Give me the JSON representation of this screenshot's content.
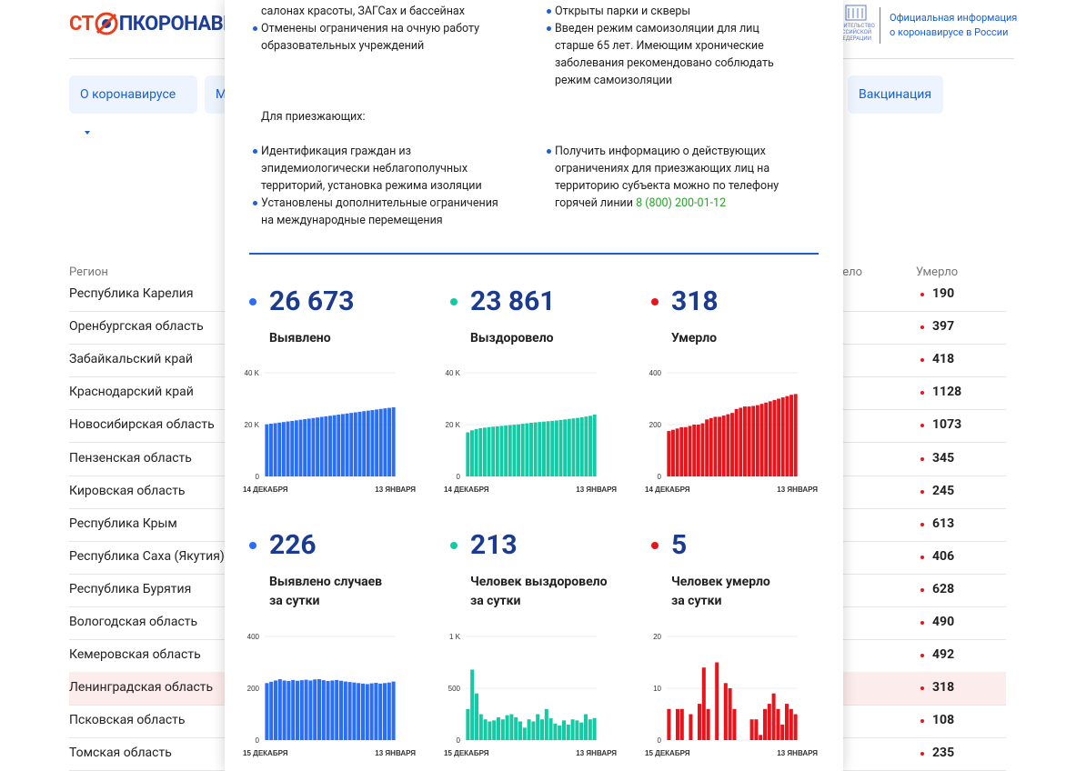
{
  "header": {
    "logo_left": "СТ",
    "logo_right": "ПКОРОНАВИРУС",
    "gov_emblem_text": [
      "ПРАВИТЕЛЬСТВО",
      "РОССИЙСКОЙ",
      "ФЕДЕРАЦИИ"
    ],
    "official_info": [
      "Официальная информация",
      "о коронавирусе в России"
    ]
  },
  "nav": [
    "О коронавирусе",
    "Меры",
    "Вакцинация"
  ],
  "table": {
    "headers": [
      "Регион",
      "Выздоровело",
      "Умерло"
    ],
    "rows": [
      [
        "Республика Карелия",
        "190"
      ],
      [
        "Оренбургская область",
        "397"
      ],
      [
        "Забайкальский край",
        "418"
      ],
      [
        "Краснодарский край",
        "1128"
      ],
      [
        "Новосибирская область",
        "1073"
      ],
      [
        "Пензенская область",
        "345"
      ],
      [
        "Кировская область",
        "245"
      ],
      [
        "Республика Крым",
        "613"
      ],
      [
        "Республика Саха (Якутия)",
        "406"
      ],
      [
        "Республика Бурятия",
        "628"
      ],
      [
        "Вологодская область",
        "490"
      ],
      [
        "Кемеровская область",
        "492"
      ],
      [
        "Ленинградская область",
        "318"
      ],
      [
        "Псковская область",
        "108"
      ],
      [
        "Томская область",
        "235"
      ]
    ]
  },
  "popup": {
    "left_top": {
      "continuation": "салонах красоты, ЗАГСах и бассейнах",
      "items": [
        "Отменены ограничения на очную работу образовательных учреждений"
      ]
    },
    "right_top": {
      "items": [
        "Открыты парки и скверы",
        "Введен режим самоизоляции для лиц старше 65 лет. Имеющим хронические заболевания рекомендовано соблюдать режим самоизоляции"
      ]
    },
    "arrivals_title": "Для приезжающих:",
    "left_bottom": {
      "items": [
        "Идентификация граждан из эпидемиологически неблагополучных территорий, установка режима изоляции",
        "Установлены дополнительные ограничения на международные перемещения"
      ]
    },
    "right_bottom": {
      "text": "Получить информацию о действующих ограничениях для приезжающих лиц на территорию субъекта можно по телефону горячей линии",
      "phone": "8 (800) 200-01-12"
    }
  },
  "chart_data": [
    {
      "type": "bar",
      "headline": "26 673",
      "title_lines": [
        "Выявлено"
      ],
      "color": "#2a6ef5",
      "categories": [
        "14 ДЕКАБРЯ",
        null,
        null,
        null,
        null,
        null,
        null,
        null,
        null,
        null,
        null,
        null,
        null,
        null,
        null,
        null,
        null,
        null,
        null,
        null,
        null,
        null,
        null,
        null,
        null,
        null,
        null,
        null,
        null,
        null,
        "13 ЯНВАРЯ"
      ],
      "values": [
        20110,
        20330,
        20550,
        20770,
        20990,
        21210,
        21430,
        21650,
        21870,
        22090,
        22310,
        22530,
        22750,
        22970,
        23190,
        23410,
        23630,
        23850,
        24070,
        24290,
        24510,
        24730,
        24950,
        25170,
        25390,
        25610,
        25830,
        26050,
        26270,
        26470,
        26673
      ],
      "ylim": [
        0,
        40000
      ],
      "yticks": [
        0,
        {
          "value": 20000,
          "label": "20 K"
        },
        {
          "value": 40000,
          "label": "40 K"
        }
      ],
      "grid": true
    },
    {
      "type": "bar",
      "headline": "23 861",
      "title_lines": [
        "Выздоровело"
      ],
      "color": "#14c9a3",
      "categories": [
        "14 ДЕКАБРЯ",
        null,
        null,
        null,
        null,
        null,
        null,
        null,
        null,
        null,
        null,
        null,
        null,
        null,
        null,
        null,
        null,
        null,
        null,
        null,
        null,
        null,
        null,
        null,
        null,
        null,
        null,
        null,
        null,
        null,
        "13 ЯНВАРЯ"
      ],
      "values": [
        17000,
        17800,
        18300,
        18600,
        18800,
        19000,
        19200,
        19350,
        19500,
        19650,
        19800,
        19950,
        20100,
        20300,
        20500,
        20700,
        20850,
        21000,
        21150,
        21300,
        21450,
        21600,
        21800,
        22000,
        22200,
        22400,
        22600,
        22800,
        23100,
        23400,
        23861
      ],
      "ylim": [
        0,
        40000
      ],
      "yticks": [
        0,
        {
          "value": 20000,
          "label": "20 K"
        },
        {
          "value": 40000,
          "label": "40 K"
        }
      ],
      "grid": true
    },
    {
      "type": "bar",
      "headline": "318",
      "title_lines": [
        "Умерло"
      ],
      "color": "#e8141c",
      "categories": [
        "14 ДЕКАБРЯ",
        null,
        null,
        null,
        null,
        null,
        null,
        null,
        null,
        null,
        null,
        null,
        null,
        null,
        null,
        null,
        null,
        null,
        null,
        null,
        null,
        null,
        null,
        null,
        null,
        null,
        null,
        null,
        null,
        null,
        "13 ЯНВАРЯ"
      ],
      "values": [
        175,
        180,
        185,
        190,
        190,
        195,
        200,
        200,
        205,
        220,
        225,
        230,
        230,
        235,
        240,
        245,
        260,
        265,
        270,
        270,
        272,
        275,
        280,
        285,
        290,
        295,
        300,
        305,
        310,
        315,
        318
      ],
      "ylim": [
        0,
        400
      ],
      "yticks": [
        0,
        200,
        400
      ],
      "grid": true
    },
    {
      "type": "bar",
      "headline": "226",
      "title_lines": [
        "Выявлено случаев",
        "за сутки"
      ],
      "color": "#2a6ef5",
      "categories": [
        "15 ДЕКАБРЯ",
        null,
        null,
        null,
        null,
        null,
        null,
        null,
        null,
        null,
        null,
        null,
        null,
        null,
        null,
        null,
        null,
        null,
        null,
        null,
        null,
        null,
        null,
        null,
        null,
        null,
        null,
        null,
        null,
        "13 ЯНВАРЯ"
      ],
      "values": [
        220,
        225,
        230,
        235,
        230,
        228,
        232,
        229,
        231,
        233,
        230,
        234,
        235,
        231,
        228,
        230,
        232,
        229,
        226,
        224,
        222,
        220,
        218,
        216,
        219,
        221,
        218,
        220,
        222,
        226
      ],
      "ylim": [
        0,
        400
      ],
      "yticks": [
        0,
        200,
        400
      ],
      "grid": true
    },
    {
      "type": "bar",
      "headline": "213",
      "title_lines": [
        "Человек выздоровело",
        "за сутки"
      ],
      "color": "#14c9a3",
      "categories": [
        "15 ДЕКАБРЯ",
        null,
        null,
        null,
        null,
        null,
        null,
        null,
        null,
        null,
        null,
        null,
        null,
        null,
        null,
        null,
        null,
        null,
        null,
        null,
        null,
        null,
        null,
        null,
        null,
        null,
        null,
        null,
        null,
        "13 ЯНВАРЯ"
      ],
      "values": [
        300,
        680,
        450,
        250,
        200,
        180,
        190,
        220,
        200,
        240,
        250,
        220,
        180,
        120,
        200,
        180,
        250,
        200,
        300,
        210,
        160,
        140,
        190,
        150,
        200,
        190,
        170,
        250,
        200,
        213
      ],
      "ylim": [
        0,
        1000
      ],
      "yticks": [
        0,
        500,
        {
          "value": 1000,
          "label": "1 K"
        }
      ],
      "grid": true
    },
    {
      "type": "bar",
      "headline": "5",
      "title_lines": [
        "Человек умерло",
        "за сутки"
      ],
      "color": "#e8141c",
      "categories": [
        "15 ДЕКАБРЯ",
        null,
        null,
        null,
        null,
        null,
        null,
        null,
        null,
        null,
        null,
        null,
        null,
        null,
        null,
        null,
        null,
        null,
        null,
        null,
        null,
        null,
        null,
        null,
        null,
        null,
        null,
        null,
        null,
        "13 ЯНВАРЯ"
      ],
      "values": [
        6,
        0,
        6,
        6,
        0,
        5,
        0,
        7,
        14,
        6,
        0,
        15,
        0,
        11,
        10,
        6,
        0,
        0,
        0,
        4,
        4,
        1,
        6,
        7,
        9,
        6,
        3,
        7,
        6,
        5
      ],
      "ylim": [
        0,
        20
      ],
      "yticks": [
        0,
        10,
        20
      ],
      "grid": true
    }
  ]
}
